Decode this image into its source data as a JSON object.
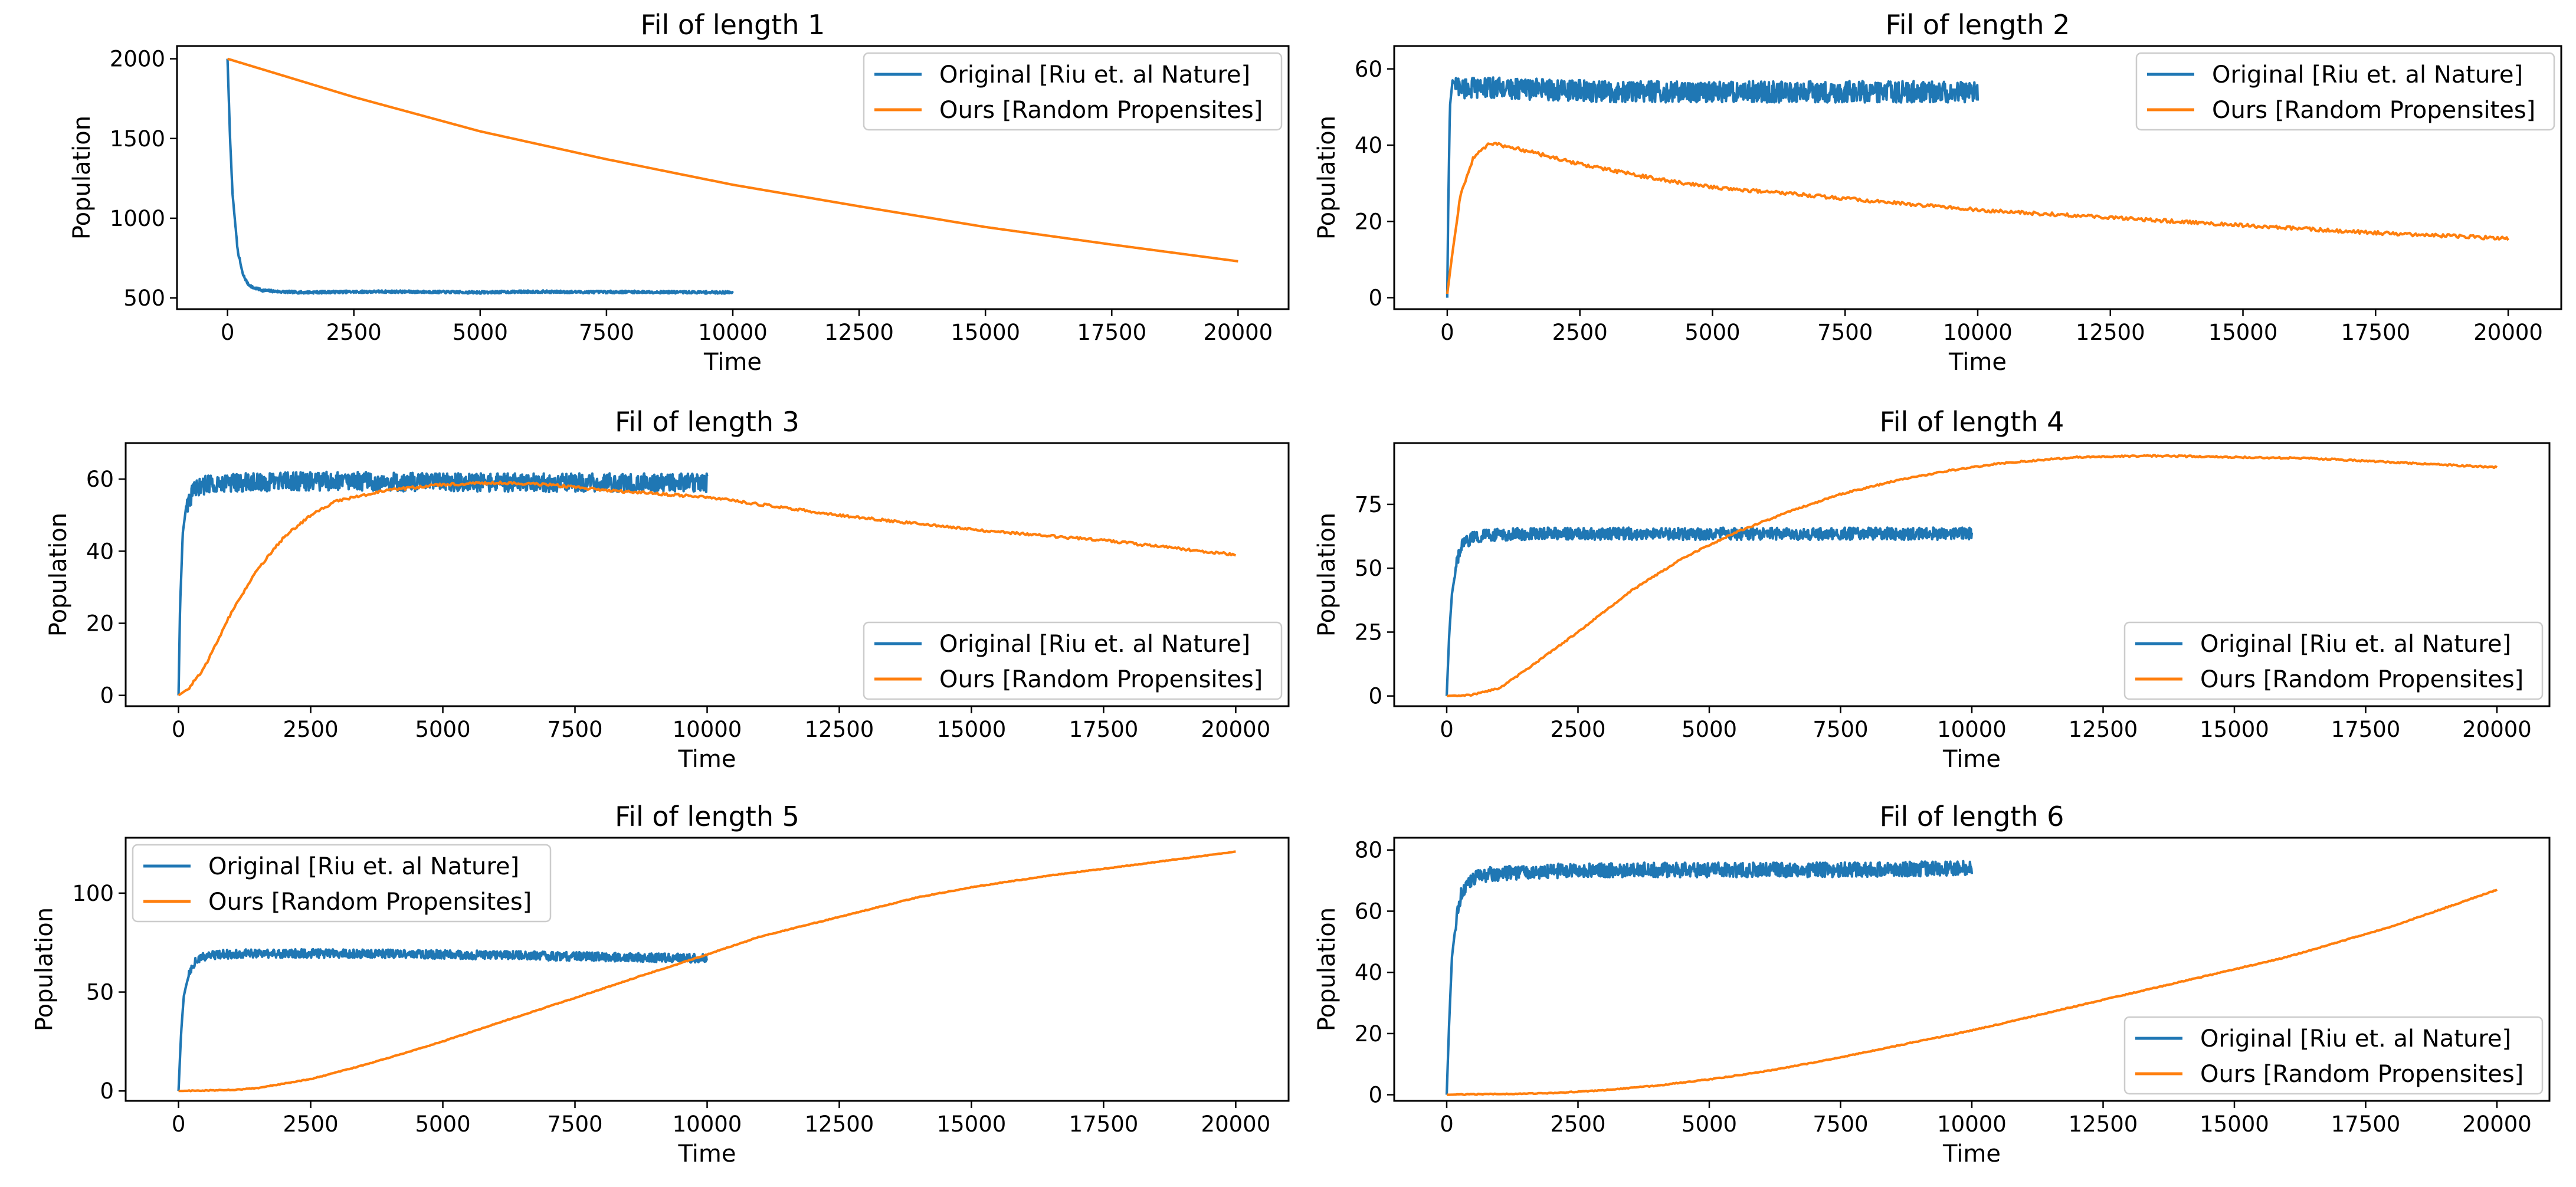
{
  "figure": {
    "colors": {
      "original": "#1f77b4",
      "ours": "#ff7f0e"
    }
  },
  "chart_data": [
    {
      "type": "line",
      "title": "Fil of length 1",
      "xlabel": "Time",
      "ylabel": "Population",
      "xlim": [
        -1000,
        21000
      ],
      "ylim": [
        430,
        2080
      ],
      "xticks": [
        0,
        2500,
        5000,
        7500,
        10000,
        12500,
        15000,
        17500,
        20000
      ],
      "yticks": [
        500,
        1000,
        1500,
        2000
      ],
      "legend_position": "upper right",
      "series": [
        {
          "name": "Original [Riu et. al Nature]",
          "color": "#1f77b4",
          "noise": 8,
          "x": [
            0,
            50,
            100,
            200,
            300,
            400,
            500,
            700,
            1000,
            1500,
            2000,
            3000,
            4000,
            5000,
            6000,
            7000,
            8000,
            9000,
            10000
          ],
          "y": [
            2000,
            1500,
            1150,
            800,
            650,
            590,
            565,
            548,
            540,
            535,
            537,
            540,
            538,
            535,
            540,
            537,
            538,
            536,
            535
          ]
        },
        {
          "name": "Ours [Random Propensites]",
          "color": "#ff7f0e",
          "noise": 0,
          "x": [
            0,
            2500,
            5000,
            7500,
            10000,
            12500,
            15000,
            17500,
            20000
          ],
          "y": [
            2000,
            1760,
            1545,
            1370,
            1210,
            1075,
            945,
            835,
            730
          ]
        }
      ]
    },
    {
      "type": "line",
      "title": "Fil of length 2",
      "xlabel": "Time",
      "ylabel": "Population",
      "xlim": [
        -1000,
        21000
      ],
      "ylim": [
        -3,
        66
      ],
      "xticks": [
        0,
        2500,
        5000,
        7500,
        10000,
        12500,
        15000,
        17500,
        20000
      ],
      "yticks": [
        0,
        20,
        40,
        60
      ],
      "legend_position": "upper right",
      "series": [
        {
          "name": "Original [Riu et. al Nature]",
          "color": "#1f77b4",
          "noise": 2.8,
          "x": [
            0,
            20,
            50,
            100,
            150,
            300,
            1000,
            3000,
            5000,
            7500,
            10000
          ],
          "y": [
            0,
            25,
            50,
            57,
            56,
            55,
            55,
            54,
            54,
            54,
            54
          ]
        },
        {
          "name": "Ours [Random Propensites]",
          "color": "#ff7f0e",
          "noise": 0.45,
          "x": [
            0,
            100,
            250,
            500,
            800,
            1000,
            1500,
            2500,
            4000,
            5000,
            7500,
            10000,
            12500,
            15000,
            17500,
            20000
          ],
          "y": [
            1,
            12,
            27,
            37,
            40.5,
            40,
            38.5,
            35,
            31,
            29,
            26,
            23,
            21,
            19,
            17,
            15.5
          ]
        }
      ]
    },
    {
      "type": "line",
      "title": "Fil of length 3",
      "xlabel": "Time",
      "ylabel": "Population",
      "xlim": [
        -1000,
        21000
      ],
      "ylim": [
        -3,
        70
      ],
      "xticks": [
        0,
        2500,
        5000,
        7500,
        10000,
        12500,
        15000,
        17500,
        20000
      ],
      "yticks": [
        0,
        20,
        40,
        60
      ],
      "legend_position": "lower right",
      "series": [
        {
          "name": "Original [Riu et. al Nature]",
          "color": "#1f77b4",
          "noise": 2.6,
          "x": [
            0,
            30,
            80,
            150,
            300,
            600,
            1000,
            3000,
            5000,
            7500,
            10000
          ],
          "y": [
            0,
            25,
            45,
            53,
            57,
            59,
            59,
            59.5,
            59,
            59,
            59
          ]
        },
        {
          "name": "Ours [Random Propensites]",
          "color": "#ff7f0e",
          "noise": 0.35,
          "x": [
            0,
            200,
            500,
            1000,
            1500,
            2000,
            2500,
            3000,
            4000,
            5000,
            6000,
            7000,
            8000,
            9000,
            10000,
            12500,
            15000,
            17500,
            20000
          ],
          "y": [
            0,
            2,
            8,
            23,
            35,
            44,
            50,
            54,
            57,
            58.5,
            59,
            58.5,
            57,
            56,
            55,
            50,
            46,
            43,
            39
          ]
        }
      ]
    },
    {
      "type": "line",
      "title": "Fil of length 4",
      "xlabel": "Time",
      "ylabel": "Population",
      "xlim": [
        -1000,
        21000
      ],
      "ylim": [
        -4,
        99
      ],
      "xticks": [
        0,
        2500,
        5000,
        7500,
        10000,
        12500,
        15000,
        17500,
        20000
      ],
      "yticks": [
        0,
        25,
        50,
        75
      ],
      "legend_position": "lower right",
      "series": [
        {
          "name": "Original [Riu et. al Nature]",
          "color": "#1f77b4",
          "noise": 2.4,
          "x": [
            0,
            50,
            100,
            200,
            300,
            500,
            800,
            1500,
            3000,
            5000,
            7500,
            10000
          ],
          "y": [
            0,
            25,
            40,
            53,
            59,
            62,
            63,
            63.5,
            63.5,
            63.5,
            63.5,
            63.5
          ]
        },
        {
          "name": "Ours [Random Propensites]",
          "color": "#ff7f0e",
          "noise": 0.3,
          "x": [
            0,
            500,
            1000,
            1500,
            2500,
            3500,
            4500,
            5500,
            6500,
            7500,
            8500,
            9500,
            10500,
            12000,
            13500,
            15000,
            16500,
            18000,
            19000,
            20000
          ],
          "y": [
            0,
            0.5,
            3,
            10,
            25,
            41,
            54,
            64,
            72,
            79,
            84,
            88,
            91,
            93.5,
            94,
            93.5,
            93,
            91.5,
            90.5,
            89.5
          ]
        }
      ]
    },
    {
      "type": "line",
      "title": "Fil of length 5",
      "xlabel": "Time",
      "ylabel": "Population",
      "xlim": [
        -1000,
        21000
      ],
      "ylim": [
        -5,
        128
      ],
      "xticks": [
        0,
        2500,
        5000,
        7500,
        10000,
        12500,
        15000,
        17500,
        20000
      ],
      "yticks": [
        0,
        50,
        100
      ],
      "legend_position": "upper left",
      "series": [
        {
          "name": "Original [Riu et. al Nature]",
          "color": "#1f77b4",
          "noise": 2.2,
          "x": [
            0,
            50,
            100,
            200,
            300,
            500,
            800,
            1500,
            3000,
            5000,
            7500,
            10000
          ],
          "y": [
            0,
            30,
            48,
            60,
            65,
            68,
            69,
            69.5,
            69.5,
            69,
            68,
            67
          ]
        },
        {
          "name": "Ours [Random Propensites]",
          "color": "#ff7f0e",
          "noise": 0.2,
          "x": [
            0,
            1000,
            1500,
            2500,
            3500,
            5000,
            6000,
            7500,
            8500,
            10000,
            11000,
            12500,
            14000,
            15000,
            16500,
            18000,
            20000
          ],
          "y": [
            0,
            0.5,
            1.5,
            6,
            13,
            25,
            34,
            47,
            56,
            69,
            78,
            88,
            98,
            103,
            109,
            114,
            121
          ]
        }
      ]
    },
    {
      "type": "line",
      "title": "Fil of length 6",
      "xlabel": "Time",
      "ylabel": "Population",
      "xlim": [
        -1000,
        21000
      ],
      "ylim": [
        -2,
        84
      ],
      "xticks": [
        0,
        2500,
        5000,
        7500,
        10000,
        12500,
        15000,
        17500,
        20000
      ],
      "yticks": [
        0,
        20,
        40,
        60,
        80
      ],
      "legend_position": "lower right",
      "series": [
        {
          "name": "Original [Riu et. al Nature]",
          "color": "#1f77b4",
          "noise": 2.4,
          "x": [
            0,
            50,
            100,
            200,
            300,
            500,
            800,
            1500,
            3000,
            5000,
            7500,
            10000
          ],
          "y": [
            0,
            25,
            45,
            60,
            67,
            71,
            72,
            73,
            73.5,
            73.5,
            73.5,
            74
          ]
        },
        {
          "name": "Ours [Random Propensites]",
          "color": "#ff7f0e",
          "noise": 0.15,
          "x": [
            0,
            2000,
            3000,
            4000,
            5000,
            6000,
            7000,
            8000,
            9000,
            10000,
            11000,
            12000,
            13000,
            14000,
            15000,
            16000,
            17000,
            18000,
            19000,
            20000
          ],
          "y": [
            0,
            0.5,
            1.5,
            3,
            5,
            7.5,
            10.5,
            14,
            17.5,
            21,
            25,
            29,
            33,
            37,
            41,
            45,
            50,
            55,
            61,
            67
          ]
        }
      ]
    }
  ]
}
